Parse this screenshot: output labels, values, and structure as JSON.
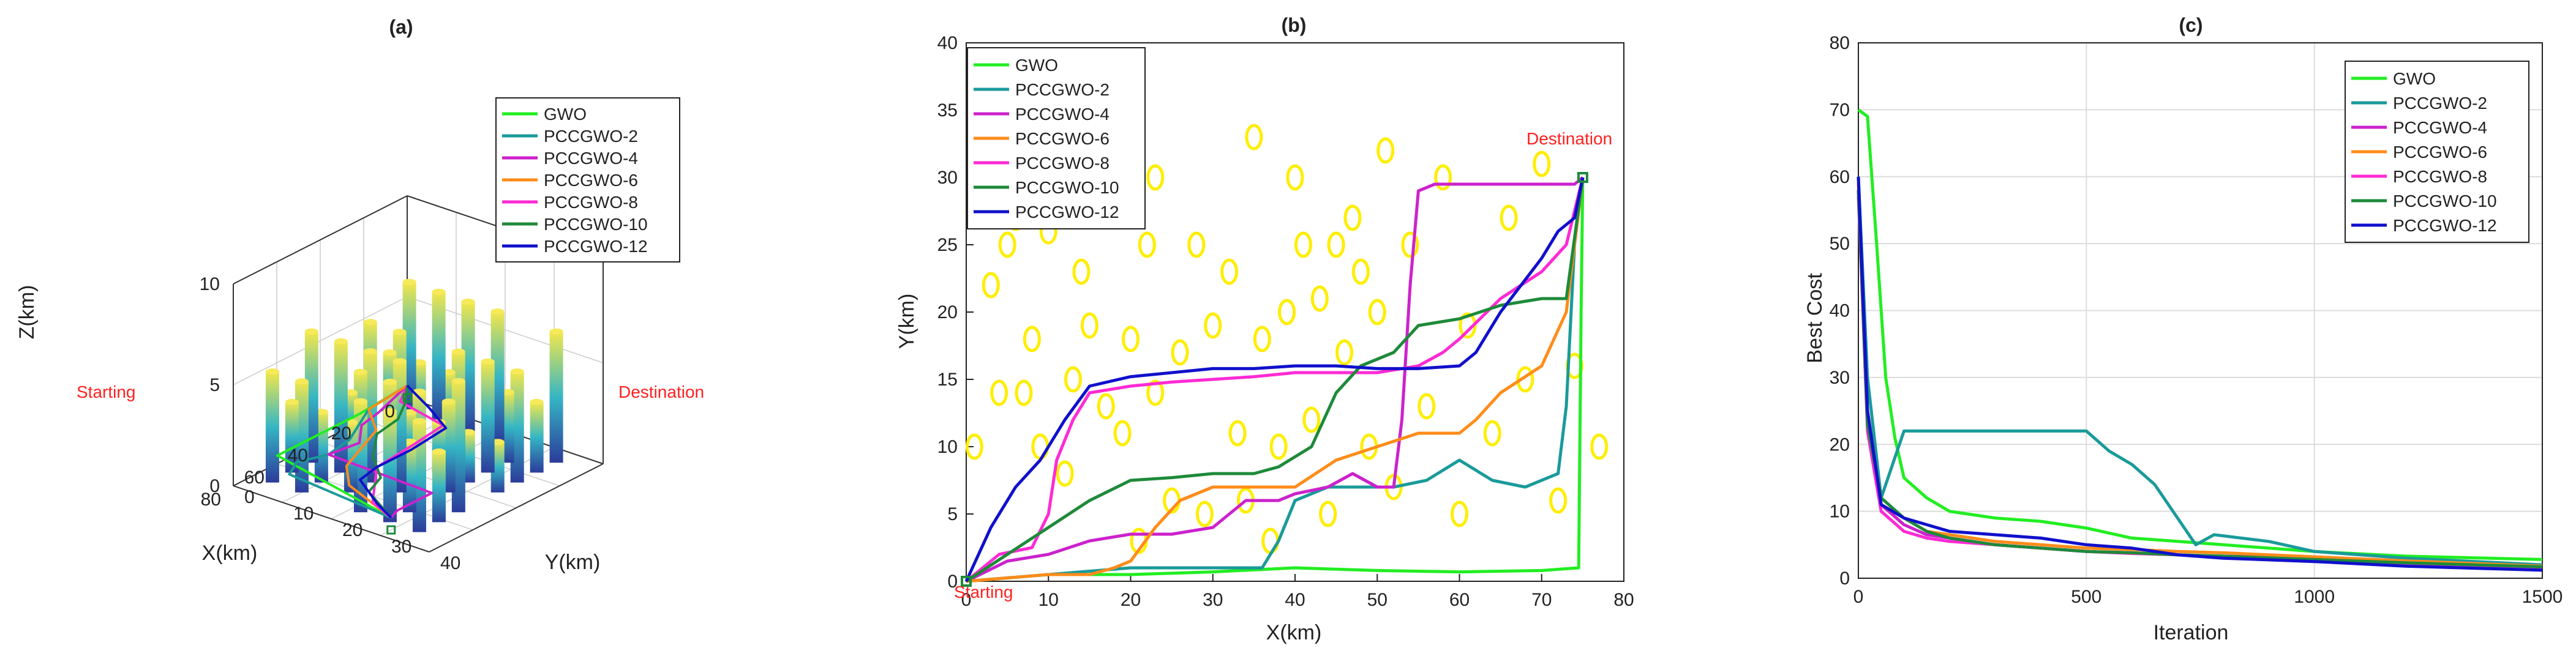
{
  "chart_data": [
    {
      "id": "a",
      "type": "line3d",
      "title": "(a)",
      "xlabel": "X(km)",
      "ylabel": "Y(km)",
      "zlabel": "Z(km)",
      "xlim": [
        0,
        80
      ],
      "ylim": [
        0,
        40
      ],
      "zlim": [
        0,
        10
      ],
      "xticks": [
        "0",
        "20",
        "40",
        "60",
        "80"
      ],
      "yticks": [
        "0",
        "10",
        "20",
        "30",
        "40"
      ],
      "zticks": [
        "0",
        "5",
        "10"
      ],
      "start_label": "Starting",
      "dest_label": "Destination",
      "legend": [
        "GWO",
        "PCCGWO-2",
        "PCCGWO-4",
        "PCCGWO-6",
        "PCCGWO-8",
        "PCCGWO-10",
        "PCCGWO-12"
      ],
      "legend_position": "top-right",
      "series": [
        {
          "name": "GWO",
          "color": "#22ee22",
          "x": [
            0,
            12,
            24,
            36,
            48,
            62,
            75
          ],
          "y": [
            0,
            0.5,
            1,
            1,
            1,
            1,
            30
          ]
        },
        {
          "name": "PCCGWO-2",
          "color": "#1a9a9a",
          "x": [
            0,
            20,
            40,
            52,
            62,
            70,
            75
          ],
          "y": [
            0,
            1,
            6,
            7,
            5,
            7,
            30
          ]
        },
        {
          "name": "PCCGWO-4",
          "color": "#cc22cc",
          "x": [
            0,
            20,
            30,
            40,
            52,
            54,
            70,
            75
          ],
          "y": [
            0,
            3,
            4,
            8,
            7,
            29,
            29,
            30
          ]
        },
        {
          "name": "PCCGWO-6",
          "color": "#ff8c1a",
          "x": [
            0,
            20,
            30,
            45,
            55,
            65,
            75
          ],
          "y": [
            0,
            1,
            7,
            10,
            12,
            17,
            30
          ]
        },
        {
          "name": "PCCGWO-8",
          "color": "#ff2ad4",
          "x": [
            0,
            10,
            15,
            30,
            50,
            60,
            70,
            75
          ],
          "y": [
            0,
            3,
            14,
            15,
            16,
            20,
            24,
            30
          ]
        },
        {
          "name": "PCCGWO-10",
          "color": "#1e8a3a",
          "x": [
            0,
            10,
            20,
            32,
            45,
            55,
            65,
            75
          ],
          "y": [
            0,
            4,
            7,
            8,
            13,
            19,
            21,
            30
          ]
        },
        {
          "name": "PCCGWO-12",
          "color": "#1010cc",
          "x": [
            0,
            8,
            16,
            34,
            50,
            60,
            70,
            75
          ],
          "y": [
            0,
            8,
            15,
            16,
            16,
            17,
            25,
            30
          ]
        }
      ]
    },
    {
      "id": "b",
      "type": "line",
      "title": "(b)",
      "xlabel": "X(km)",
      "ylabel": "Y(km)",
      "xlim": [
        0,
        80
      ],
      "ylim": [
        0,
        40
      ],
      "xticks": [
        "0",
        "10",
        "20",
        "30",
        "40",
        "50",
        "60",
        "70",
        "80"
      ],
      "yticks": [
        "0",
        "5",
        "10",
        "15",
        "20",
        "25",
        "30",
        "35",
        "40"
      ],
      "start_label": "Starting",
      "dest_label": "Destination",
      "start_point": [
        0,
        0
      ],
      "dest_point": [
        75,
        30
      ],
      "legend": [
        "GWO",
        "PCCGWO-2",
        "PCCGWO-4",
        "PCCGWO-6",
        "PCCGWO-8",
        "PCCGWO-10",
        "PCCGWO-12"
      ],
      "legend_position": "top-left",
      "obstacles": [
        [
          1,
          10
        ],
        [
          3,
          22
        ],
        [
          4,
          14
        ],
        [
          5,
          25
        ],
        [
          6,
          27
        ],
        [
          7,
          14
        ],
        [
          8,
          18
        ],
        [
          9,
          10
        ],
        [
          10,
          26
        ],
        [
          12,
          8
        ],
        [
          13,
          15
        ],
        [
          14,
          23
        ],
        [
          15,
          19
        ],
        [
          17,
          13
        ],
        [
          19,
          11
        ],
        [
          20,
          18
        ],
        [
          21,
          3
        ],
        [
          22,
          25
        ],
        [
          23,
          14
        ],
        [
          23,
          30
        ],
        [
          25,
          6
        ],
        [
          26,
          17
        ],
        [
          28,
          25
        ],
        [
          29,
          5
        ],
        [
          30,
          19
        ],
        [
          32,
          23
        ],
        [
          33,
          11
        ],
        [
          34,
          6
        ],
        [
          35,
          33
        ],
        [
          36,
          18
        ],
        [
          37,
          3
        ],
        [
          38,
          10
        ],
        [
          39,
          20
        ],
        [
          40,
          30
        ],
        [
          41,
          25
        ],
        [
          42,
          12
        ],
        [
          43,
          21
        ],
        [
          44,
          5
        ],
        [
          45,
          25
        ],
        [
          46,
          17
        ],
        [
          47,
          27
        ],
        [
          48,
          23
        ],
        [
          49,
          10
        ],
        [
          50,
          20
        ],
        [
          51,
          32
        ],
        [
          52,
          7
        ],
        [
          54,
          25
        ],
        [
          56,
          13
        ],
        [
          58,
          30
        ],
        [
          60,
          5
        ],
        [
          61,
          19
        ],
        [
          64,
          11
        ],
        [
          66,
          27
        ],
        [
          68,
          15
        ],
        [
          70,
          31
        ],
        [
          72,
          6
        ],
        [
          74,
          16
        ],
        [
          77,
          10
        ]
      ],
      "series": [
        {
          "name": "GWO",
          "color": "#22ee22",
          "x": [
            0,
            10,
            20,
            30,
            40,
            50,
            60,
            70,
            74.5,
            74.8,
            75
          ],
          "y": [
            0,
            0.5,
            0.5,
            0.7,
            1,
            0.8,
            0.7,
            0.8,
            1,
            20,
            30
          ]
        },
        {
          "name": "PCCGWO-2",
          "color": "#1a9a9a",
          "x": [
            0,
            10,
            20,
            30,
            36,
            38,
            40,
            44,
            48,
            52,
            56,
            60,
            64,
            68,
            72,
            73,
            74,
            75
          ],
          "y": [
            0,
            0.5,
            1,
            1,
            1,
            3,
            6,
            7,
            7,
            7,
            7.5,
            9,
            7.5,
            7,
            8,
            13,
            25,
            30
          ]
        },
        {
          "name": "PCCGWO-4",
          "color": "#cc22cc",
          "x": [
            0,
            5,
            10,
            15,
            20,
            25,
            30,
            34,
            38,
            40,
            44,
            47,
            50,
            52,
            53,
            54,
            55,
            57,
            60,
            65,
            70,
            72,
            74,
            75
          ],
          "y": [
            0,
            1.5,
            2,
            3,
            3.5,
            3.5,
            4,
            6,
            6,
            6.5,
            7,
            8,
            7,
            7,
            12,
            22,
            29,
            29.5,
            29.5,
            29.5,
            29.5,
            29.5,
            29.5,
            30
          ]
        },
        {
          "name": "PCCGWO-6",
          "color": "#ff8c1a",
          "x": [
            0,
            10,
            15,
            18,
            20,
            23,
            26,
            30,
            35,
            40,
            45,
            50,
            55,
            60,
            62,
            65,
            70,
            73,
            75
          ],
          "y": [
            0,
            0.5,
            0.5,
            1,
            1.5,
            4,
            6,
            7,
            7,
            7,
            9,
            10,
            11,
            11,
            12,
            14,
            16,
            20,
            30
          ]
        },
        {
          "name": "PCCGWO-8",
          "color": "#ff2ad4",
          "x": [
            0,
            4,
            8,
            10,
            11,
            13,
            15,
            20,
            25,
            30,
            35,
            40,
            45,
            50,
            55,
            58,
            60,
            65,
            70,
            73,
            75
          ],
          "y": [
            0,
            2,
            2.5,
            5,
            9,
            12,
            14,
            14.5,
            14.8,
            15,
            15.2,
            15.5,
            15.5,
            15.5,
            16,
            17,
            18,
            21,
            23,
            25,
            30
          ]
        },
        {
          "name": "PCCGWO-10",
          "color": "#1e8a3a",
          "x": [
            0,
            5,
            10,
            15,
            20,
            25,
            30,
            35,
            38,
            42,
            45,
            48,
            52,
            55,
            60,
            65,
            70,
            73,
            75
          ],
          "y": [
            0,
            2,
            4,
            6,
            7.5,
            7.7,
            8,
            8,
            8.5,
            10,
            14,
            16,
            17,
            19,
            19.5,
            20.5,
            21,
            21,
            30
          ]
        },
        {
          "name": "PCCGWO-12",
          "color": "#1010cc",
          "x": [
            0,
            3,
            6,
            9,
            12,
            15,
            20,
            25,
            30,
            35,
            40,
            45,
            50,
            55,
            60,
            62,
            65,
            70,
            72,
            74,
            75
          ],
          "y": [
            0,
            4,
            7,
            9,
            12,
            14.5,
            15.2,
            15.5,
            15.8,
            15.8,
            16,
            16,
            15.8,
            15.8,
            16,
            17,
            20,
            24,
            26,
            27,
            30
          ]
        }
      ]
    },
    {
      "id": "c",
      "type": "line",
      "title": "(c)",
      "xlabel": "Iteration",
      "ylabel": "Best Cost",
      "xlim": [
        0,
        1500
      ],
      "ylim": [
        0,
        80
      ],
      "xticks": [
        "0",
        "500",
        "1000",
        "1500"
      ],
      "yticks": [
        "0",
        "10",
        "20",
        "30",
        "40",
        "50",
        "60",
        "70",
        "80"
      ],
      "grid": true,
      "legend": [
        "GWO",
        "PCCGWO-2",
        "PCCGWO-4",
        "PCCGWO-6",
        "PCCGWO-8",
        "PCCGWO-10",
        "PCCGWO-12"
      ],
      "legend_position": "top-right",
      "series": [
        {
          "name": "GWO",
          "color": "#22ee22",
          "x": [
            0,
            20,
            40,
            60,
            80,
            100,
            150,
            200,
            300,
            400,
            500,
            600,
            700,
            800,
            1000,
            1200,
            1500
          ],
          "y": [
            70,
            69,
            50,
            30,
            21,
            15,
            12,
            10,
            9,
            8.5,
            7.5,
            6,
            5.5,
            5,
            4,
            3.3,
            2.8
          ]
        },
        {
          "name": "PCCGWO-2",
          "color": "#1a9a9a",
          "x": [
            0,
            20,
            50,
            100,
            200,
            300,
            400,
            500,
            550,
            600,
            650,
            700,
            740,
            780,
            900,
            1000,
            1200,
            1500
          ],
          "y": [
            60,
            30,
            12,
            22,
            22,
            22,
            22,
            22,
            19,
            17,
            14,
            9,
            5,
            6.5,
            5.5,
            4,
            3,
            2
          ]
        },
        {
          "name": "PCCGWO-4",
          "color": "#cc22cc",
          "x": [
            0,
            20,
            50,
            100,
            150,
            200,
            300,
            400,
            500,
            600,
            700,
            800,
            1000,
            1200,
            1500
          ],
          "y": [
            58,
            25,
            11,
            8,
            6.5,
            6,
            5,
            4.5,
            4,
            3.8,
            3.5,
            3.3,
            3,
            2.5,
            1.5
          ]
        },
        {
          "name": "PCCGWO-6",
          "color": "#ff8c1a",
          "x": [
            0,
            20,
            50,
            100,
            150,
            200,
            300,
            400,
            500,
            600,
            700,
            800,
            1000,
            1200,
            1500
          ],
          "y": [
            59,
            24,
            11,
            9,
            7,
            6.5,
            5.5,
            5,
            4.5,
            4.3,
            4,
            3.8,
            3.2,
            2.6,
            1.8
          ]
        },
        {
          "name": "PCCGWO-8",
          "color": "#ff2ad4",
          "x": [
            0,
            20,
            50,
            100,
            150,
            200,
            300,
            400,
            500,
            600,
            700,
            800,
            1000,
            1200,
            1500
          ],
          "y": [
            57,
            22,
            10,
            7,
            6,
            5.5,
            5,
            4.5,
            4,
            3.7,
            3.5,
            3.2,
            2.8,
            2.2,
            1.5
          ]
        },
        {
          "name": "PCCGWO-10",
          "color": "#1e8a3a",
          "x": [
            0,
            20,
            50,
            100,
            150,
            200,
            300,
            400,
            500,
            600,
            700,
            800,
            1000,
            1200,
            1500
          ],
          "y": [
            58,
            23,
            12,
            9,
            7,
            6,
            5,
            4.5,
            4,
            3.8,
            3.5,
            3.3,
            2.8,
            2.3,
            1.7
          ]
        },
        {
          "name": "PCCGWO-12",
          "color": "#1010cc",
          "x": [
            0,
            20,
            50,
            100,
            150,
            200,
            300,
            400,
            500,
            600,
            700,
            800,
            1000,
            1200,
            1500
          ],
          "y": [
            60,
            25,
            11,
            9,
            8,
            7,
            6.5,
            6,
            5,
            4.5,
            3.5,
            3,
            2.5,
            1.8,
            1.2
          ]
        }
      ]
    }
  ]
}
